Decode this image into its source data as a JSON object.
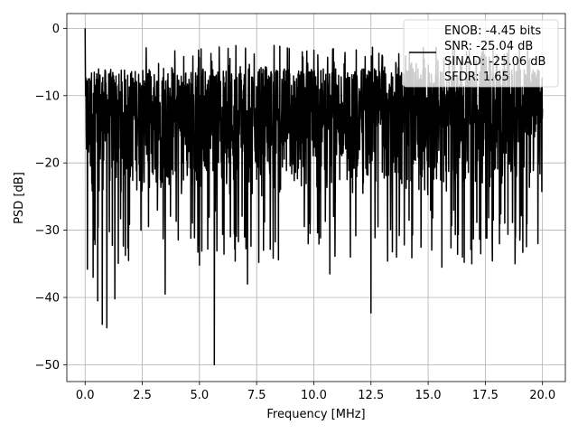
{
  "chart_data": {
    "type": "line",
    "xlabel": "Frequency [MHz]",
    "ylabel": "PSD [dB]",
    "xlim": [
      -0.8,
      21.0
    ],
    "ylim": [
      -52.5,
      2.2
    ],
    "xticks": [
      0.0,
      2.5,
      5.0,
      7.5,
      10.0,
      12.5,
      15.0,
      17.5,
      20.0
    ],
    "xtick_labels": [
      "0.0",
      "2.5",
      "5.0",
      "7.5",
      "10.0",
      "12.5",
      "15.0",
      "17.5",
      "20.0"
    ],
    "yticks": [
      0,
      -10,
      -20,
      -30,
      -40,
      -50
    ],
    "ytick_labels": [
      "0",
      "−10",
      "−20",
      "−30",
      "−40",
      "−50"
    ],
    "grid": true,
    "legend_position": "top-right",
    "series": [
      {
        "name_lines": [
          "ENOB: -4.45 bits",
          "SNR: -25.04 dB",
          "SINAD: -25.06 dB",
          "SFDR: 1.65"
        ],
        "color": "#000000",
        "x_range": [
          0.0,
          20.0
        ],
        "num_points": 2000,
        "typical_band_db": [
          -25.0,
          -6.0
        ],
        "features": [
          {
            "x": 0.0,
            "y": 0.0
          },
          {
            "x": 0.1,
            "y": -35.8
          },
          {
            "x": 0.35,
            "y": -37.0
          },
          {
            "x": 0.55,
            "y": -40.5
          },
          {
            "x": 0.75,
            "y": -44.0
          },
          {
            "x": 0.95,
            "y": -44.5
          },
          {
            "x": 1.3,
            "y": -40.2
          },
          {
            "x": 1.9,
            "y": -34.5
          },
          {
            "x": 3.5,
            "y": -39.5
          },
          {
            "x": 5.0,
            "y": -35.2
          },
          {
            "x": 5.65,
            "y": -50.0
          },
          {
            "x": 7.1,
            "y": -38.0
          },
          {
            "x": 7.8,
            "y": -33.0
          },
          {
            "x": 10.7,
            "y": -36.5
          },
          {
            "x": 11.6,
            "y": -34.0
          },
          {
            "x": 12.5,
            "y": -42.3
          },
          {
            "x": 15.6,
            "y": -35.5
          },
          {
            "x": 16.5,
            "y": -34.0
          },
          {
            "x": 17.3,
            "y": -33.5
          },
          {
            "x": 18.8,
            "y": -35.0
          },
          {
            "x": 19.8,
            "y": -32.0
          },
          {
            "x": 20.0,
            "y": -12.0
          }
        ]
      }
    ]
  }
}
